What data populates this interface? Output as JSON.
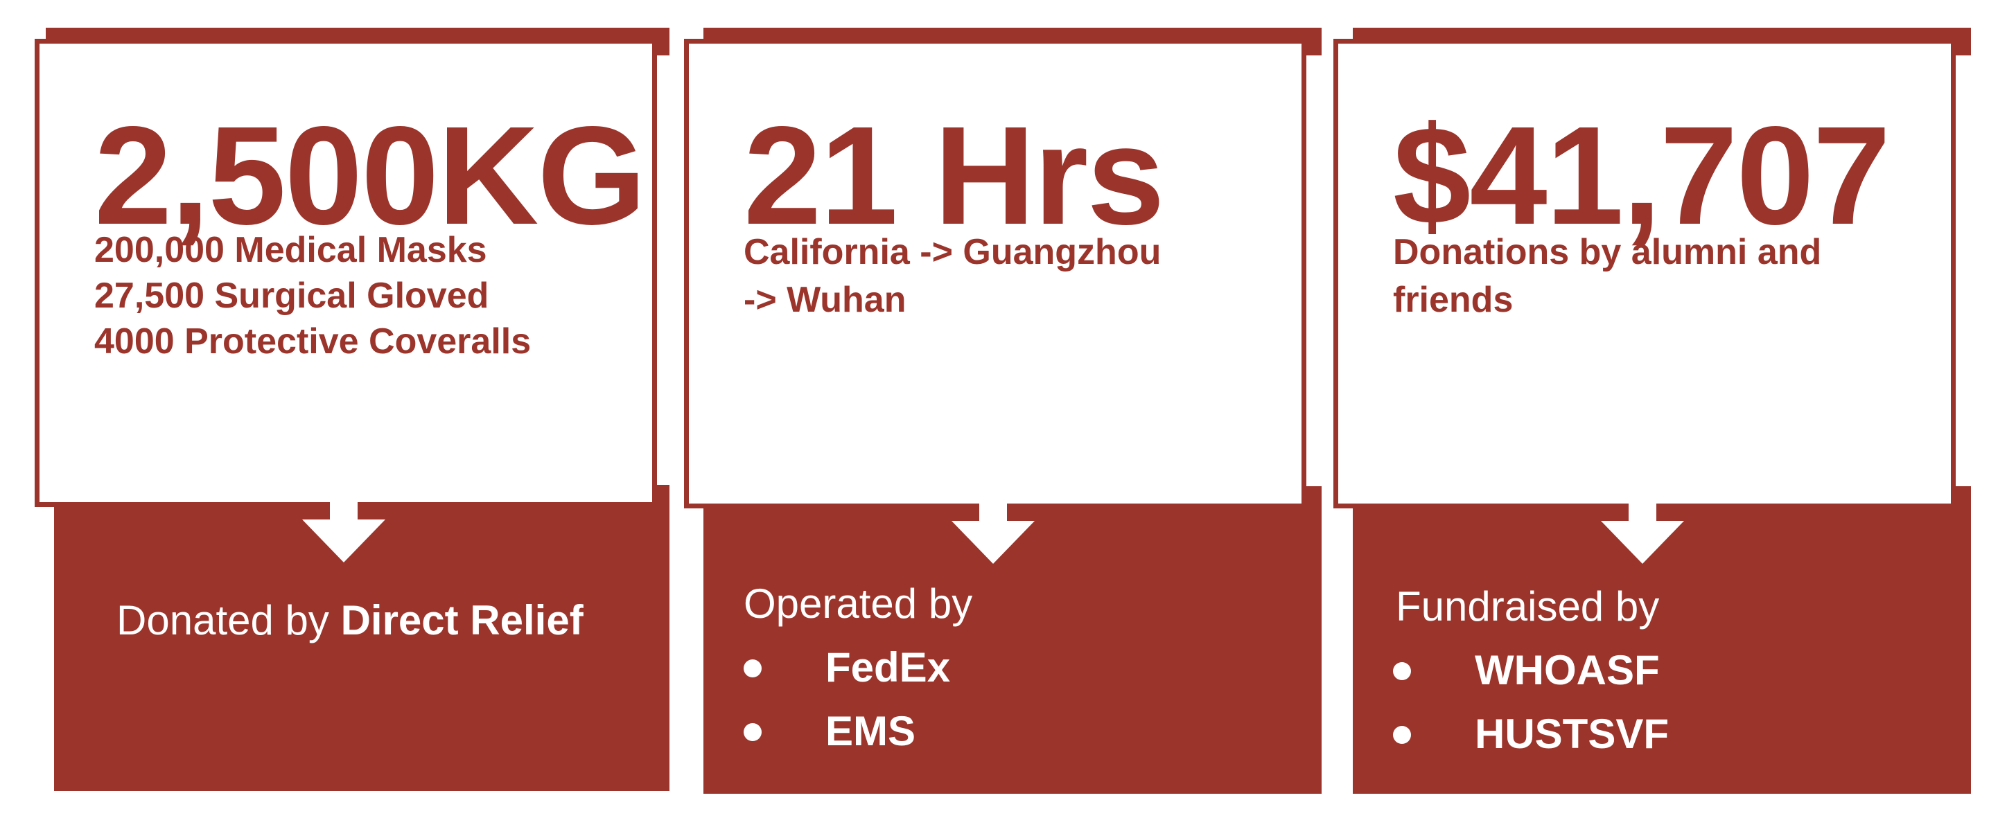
{
  "colors": {
    "accent": "#9b342b",
    "panel": "#ffffff",
    "text_on_accent": "#ffffff"
  },
  "cards": [
    {
      "stat": "2,500KG",
      "details": [
        "200,000 Medical Masks",
        "27,500 Surgical Gloved",
        "4000 Protective Coveralls"
      ],
      "arrow_icon": "down-arrow-icon",
      "footer_prefix": "Donated by ",
      "footer_bold": "Direct Relief"
    },
    {
      "stat": "21 Hrs",
      "details": [
        "California -> Guangzhou",
        "-> Wuhan"
      ],
      "arrow_icon": "down-arrow-icon",
      "footer_heading": "Operated by",
      "footer_items": [
        "FedEx",
        "EMS"
      ]
    },
    {
      "stat": "$41,707",
      "details": [
        "Donations by alumni and",
        "friends"
      ],
      "arrow_icon": "down-arrow-icon",
      "footer_heading": "Fundraised by",
      "footer_items": [
        "WHOASF",
        "HUSTSVF"
      ]
    }
  ]
}
